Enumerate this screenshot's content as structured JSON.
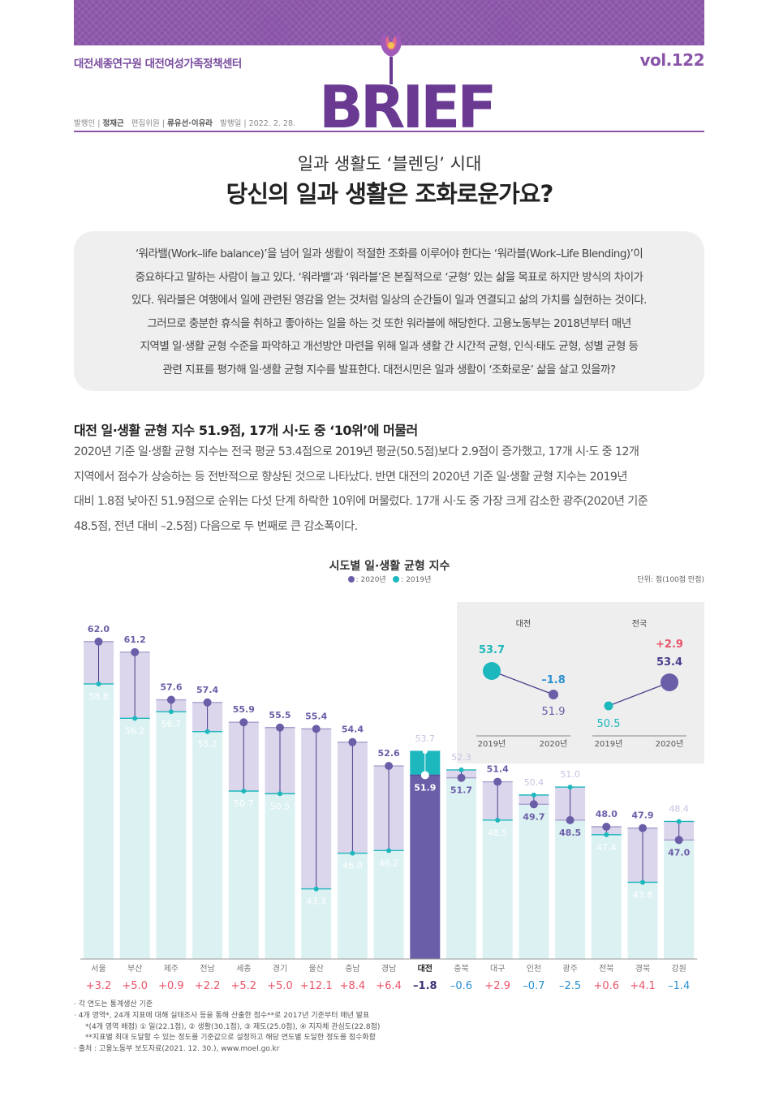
{
  "header": {
    "org": "대전세종연구원 대전여성가족정책센터",
    "volume": "vol.122",
    "brand": "BRIEF",
    "publisher_label": "발행인",
    "publisher": "정재근",
    "editors_label": "편집위원",
    "editors": "류유선·이유라",
    "date_label": "발행일",
    "date": "2022. 2. 28."
  },
  "article": {
    "subtitle": "일과 생활도 ‘블렌딩’ 시대",
    "title": "당신의 일과 생활은 조화로운가요?",
    "intro_lines": [
      "‘워라밸(Work–life balance)’을 넘어 일과 생활이 적절한 조화를 이루어야 한다는 ‘워라블(Work–Life Blending)’이",
      "중요하다고 말하는 사람이 늘고 있다. ‘워라밸’과 ‘워라블’은 본질적으로 ‘균형’ 있는 삶을 목표로 하지만 방식의 차이가",
      "있다. 워라블은 여행에서 일에 관련된 영감을 얻는 것처럼 일상의 순간들이 일과 연결되고 삶의 가치를 실현하는 것이다.",
      "그러므로 충분한 휴식을 취하고 좋아하는 일을 하는 것 또한 워라블에 해당한다. 고용노동부는 2018년부터 매년",
      "지역별 일·생활 균형 수준을 파악하고 개선방안 마련을 위해 일과 생활 간 시간적 균형, 인식·태도 균형, 성별 균형 등",
      "관련 지표를 평가해 일·생활 균형 지수를 발표한다. 대전시민은 일과 생활이 ‘조화로운’ 삶을 살고 있을까?"
    ],
    "section_heading": "대전 일·생활 균형 지수 51.9점, 17개 시·도 중 ‘10위’에 머물러",
    "body_lines": [
      "2020년 기준 일·생활 균형 지수는 전국 평균 53.4점으로 2019년 평균(50.5점)보다 2.9점이 증가했고, 17개 시·도 중 12개",
      "지역에서 점수가 상승하는 등 전반적으로 향상된 것으로 나타났다. 반면 대전의 2020년 기준 일·생활 균형 지수는 2019년",
      "대비 1.8점 낮아진 51.9점으로 순위는 다섯 단계 하락한 10위에 머물렀다. 17개 시·도 중 가장 크게 감소한 광주(2020년 기준",
      "48.5점, 전년 대비 –2.5점) 다음으로 두 번째로 큰 감소폭이다."
    ]
  },
  "chart_data": {
    "type": "bar",
    "title": "시도별 일·생활 균형 지수",
    "unit": "단위: 점(100점 만점)",
    "legend": [
      {
        "name": ": 2020년",
        "color": "#6b5ea8"
      },
      {
        "name": ": 2019년",
        "color": "#1db8bd"
      }
    ],
    "categories": [
      "서울",
      "부산",
      "제주",
      "전남",
      "세종",
      "경기",
      "울산",
      "충남",
      "경남",
      "대전",
      "충북",
      "대구",
      "인천",
      "광주",
      "전북",
      "경북",
      "강원"
    ],
    "series": [
      {
        "name": "2020년",
        "values": [
          62.0,
          61.2,
          57.6,
          57.4,
          55.9,
          55.5,
          55.4,
          54.4,
          52.6,
          51.9,
          51.7,
          51.4,
          49.7,
          48.5,
          48.0,
          47.9,
          47.0
        ]
      },
      {
        "name": "2019년",
        "values": [
          58.8,
          56.2,
          56.7,
          55.2,
          50.7,
          50.5,
          43.3,
          46.0,
          46.2,
          53.7,
          52.3,
          48.5,
          50.4,
          51.0,
          47.4,
          43.8,
          48.4
        ]
      }
    ],
    "change_labels": [
      "+3.2",
      "+5.0",
      "+0.9",
      "+2.2",
      "+5.2",
      "+5.0",
      "+12.1",
      "+8.4",
      "+6.4",
      "–1.8",
      "–0.6",
      "+2.9",
      "–0.7",
      "–2.5",
      "+0.6",
      "+4.1",
      "–1.4"
    ],
    "ylim": [
      38,
      65
    ],
    "highlight": "대전",
    "colors": {
      "up": "#e8546a",
      "down": "#2a8fcf",
      "highlight_text": "#3b3176",
      "purple": "#6b5ea8",
      "teal": "#1db8bd",
      "bar_light": "#dcf1f1",
      "band": "#dcd6ec"
    },
    "inset": {
      "daejeon": {
        "label": "대전",
        "v2019": "53.7",
        "v2020": "51.9",
        "change": "–1.8"
      },
      "national": {
        "label": "전국",
        "v2019": "50.5",
        "v2020": "53.4",
        "change": "+2.9"
      },
      "year_2019": "2019년",
      "year_2020": "2020년"
    }
  },
  "notes": [
    "· 각 연도는 통계생산 기준",
    "· 4개 영역*, 24개 지표에 대해 실태조사 등을 통해 산출한 점수**로 2017년 기준부터 매년 발표",
    "*(4개 영역 배점) ① 일(22.1점), ② 생활(30.1점), ③ 제도(25.0점), ④ 지자체 관심도(22.8점)",
    "**지표별 최대 도달할 수 있는 정도를 기준값으로 설정하고 해당 연도별 도달한 정도를 점수화함",
    "· 출처 : 고용노동부 보도자료(2021. 12. 30.), www.moel.go.kr"
  ]
}
